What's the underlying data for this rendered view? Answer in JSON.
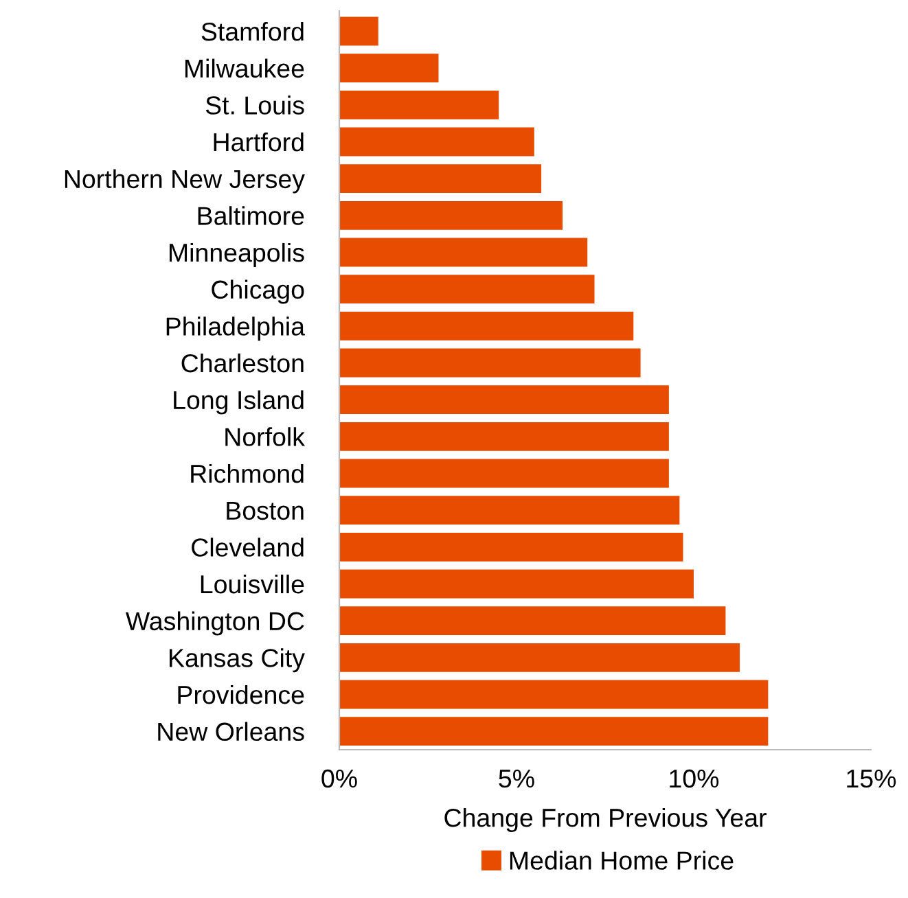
{
  "chart_data": {
    "type": "bar",
    "orientation": "horizontal",
    "xlabel": "Change From Previous Year",
    "categories": [
      "Stamford",
      "Milwaukee",
      "St. Louis",
      "Hartford",
      "Northern New Jersey",
      "Baltimore",
      "Minneapolis",
      "Chicago",
      "Philadelphia",
      "Charleston",
      "Long Island",
      "Norfolk",
      "Richmond",
      "Boston",
      "Cleveland",
      "Louisville",
      "Washington DC",
      "Kansas City",
      "Providence",
      "New Orleans"
    ],
    "series": [
      {
        "name": "Median Home Price",
        "color": "#e84c00",
        "values": [
          1.1,
          2.8,
          4.5,
          5.5,
          5.7,
          6.3,
          7.0,
          7.2,
          8.3,
          8.5,
          9.3,
          9.3,
          9.3,
          9.6,
          9.7,
          10.0,
          10.9,
          11.3,
          12.1,
          12.1
        ]
      }
    ],
    "xlim": [
      0,
      15
    ],
    "xticks": [
      {
        "value": 0,
        "label": "0%"
      },
      {
        "value": 5,
        "label": "5%"
      },
      {
        "value": 10,
        "label": "10%"
      },
      {
        "value": 15,
        "label": "15%"
      }
    ],
    "legend": "bottom"
  }
}
